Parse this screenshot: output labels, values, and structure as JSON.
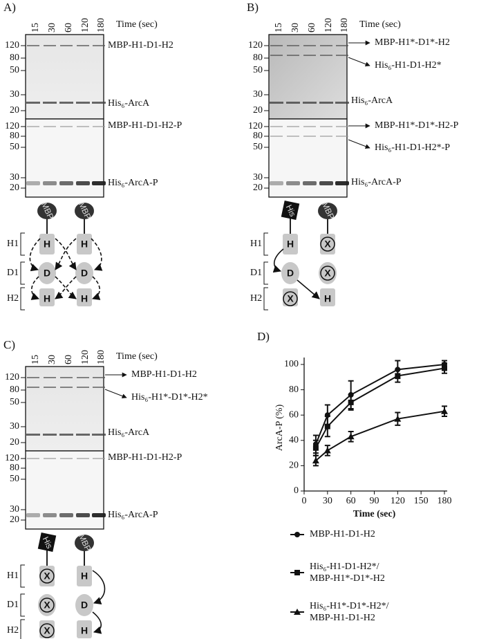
{
  "panels": [
    {
      "label": "A)",
      "lanes": [
        "15",
        "30",
        "60",
        "120",
        "180"
      ],
      "time_label": "Time (sec)",
      "mw_upper": [
        "120",
        "80",
        "50",
        "30",
        "20"
      ],
      "mw_lower": [
        "120",
        "80",
        "50",
        "30",
        "20"
      ],
      "bands_upper": [
        "MBP-H1-D1-H2",
        "His₆-ArcA"
      ],
      "bands_lower": [
        "MBP-H1-D1-H2-P",
        "His₆-ArcA-P"
      ],
      "diagram": {
        "brackets": [
          "H1",
          "D1",
          "H2"
        ],
        "tags": [
          "MBP",
          "MBP"
        ],
        "domains": [
          [
            "H",
            "D",
            "H"
          ],
          [
            "H",
            "D",
            "H"
          ]
        ]
      }
    },
    {
      "label": "B)",
      "lanes": [
        "15",
        "30",
        "60",
        "120",
        "180"
      ],
      "time_label": "Time (sec)",
      "mw_upper": [
        "120",
        "80",
        "50",
        "30",
        "20"
      ],
      "mw_lower": [
        "120",
        "80",
        "50",
        "30",
        "20"
      ],
      "bands_upper": [
        "MBP-H1*-D1*-H2",
        "His₆-H1-D1-H2*",
        "His₆-ArcA"
      ],
      "bands_lower": [
        "MBP-H1*-D1*-H2-P",
        "His₆-H1-D1-H2*-P",
        "His₆-ArcA-P"
      ],
      "diagram": {
        "brackets": [
          "H1",
          "D1",
          "H2"
        ],
        "tags": [
          "His",
          "MBP"
        ],
        "domains": [
          [
            "H",
            "D",
            "X"
          ],
          [
            "X",
            "X",
            "H"
          ]
        ]
      }
    },
    {
      "label": "C)",
      "lanes": [
        "15",
        "30",
        "60",
        "120",
        "180"
      ],
      "time_label": "Time (sec)",
      "mw_upper": [
        "120",
        "80",
        "50",
        "30",
        "20"
      ],
      "mw_lower": [
        "120",
        "80",
        "50",
        "30",
        "20"
      ],
      "bands_upper": [
        "MBP-H1-D1-H2",
        "His₆-H1*-D1*-H2*",
        "His₆-ArcA"
      ],
      "bands_lower": [
        "MBP-H1-D1-H2-P",
        "His₆-ArcA-P"
      ],
      "diagram": {
        "brackets": [
          "H1",
          "D1",
          "H2"
        ],
        "tags": [
          "His",
          "MBP"
        ],
        "domains": [
          [
            "X",
            "X",
            "X"
          ],
          [
            "H",
            "D",
            "H"
          ]
        ]
      }
    }
  ],
  "chart_data": {
    "type": "line",
    "label": "D)",
    "x_label": "Time (sec)",
    "y_label": "ArcA-P (%)",
    "x": [
      15,
      30,
      60,
      120,
      180
    ],
    "series": [
      {
        "name": "MBP-H1-D1-H2",
        "color": "#111111",
        "marker": "circle",
        "values": [
          37,
          60,
          76,
          96,
          100
        ],
        "errors": [
          7,
          8,
          11,
          7,
          3
        ]
      },
      {
        "name": "His₆-H1-D1-H2*/\nMBP-H1*-D1*-H2",
        "color": "#111111",
        "marker": "square",
        "values": [
          34,
          51,
          70,
          91,
          97
        ],
        "errors": [
          6,
          8,
          6,
          5,
          4
        ]
      },
      {
        "name": "His₆-H1*-D1*-H2*/\nMBP-H1-D1-H2",
        "color": "#111111",
        "marker": "triangle",
        "values": [
          24,
          32,
          43,
          57,
          63
        ],
        "errors": [
          4,
          4,
          4,
          5,
          4
        ]
      }
    ],
    "xlim": [
      0,
      180
    ],
    "xticks": [
      0,
      30,
      60,
      90,
      120,
      150,
      180
    ],
    "ylim": [
      0,
      100
    ],
    "yticks": [
      0,
      20,
      40,
      60,
      80,
      100
    ]
  }
}
